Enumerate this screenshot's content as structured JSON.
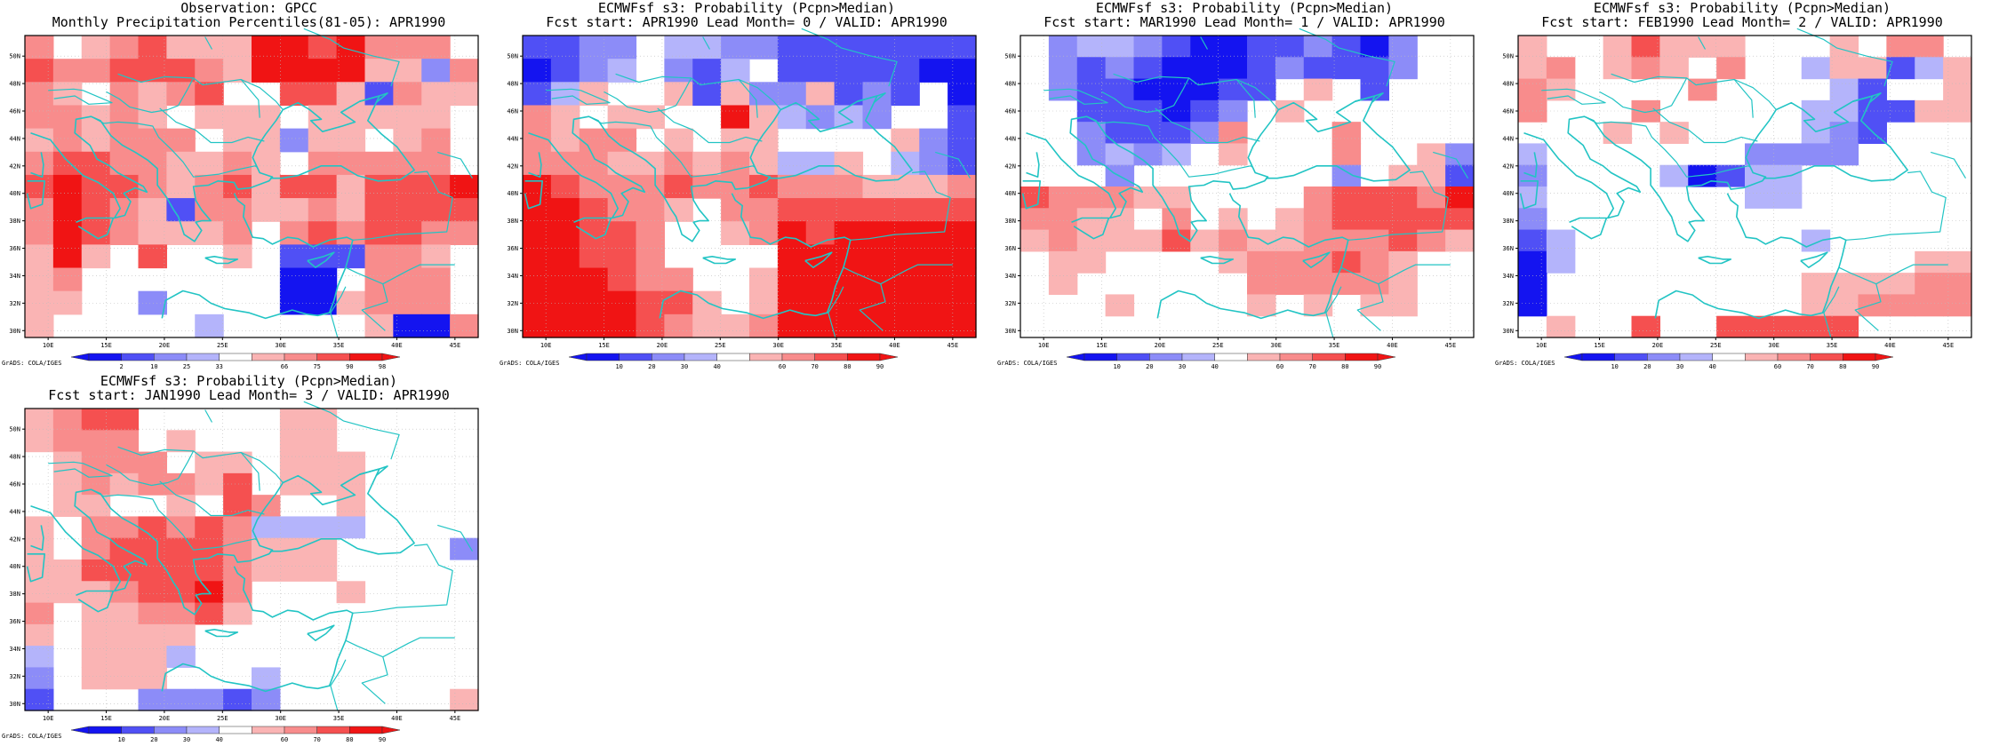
{
  "bins": {
    "b1": "#1414f0",
    "b2": "#5050f5",
    "b3": "#8c8cf8",
    "b4": "#b4b4fb",
    "w": "#ffffff",
    "r1": "#fab4b4",
    "r2": "#f88c8c",
    "r3": "#f55050",
    "r4": "#f01414"
  },
  "coast_color": "#22c4c4",
  "lat_labels": [
    "30N",
    "32N",
    "34N",
    "36N",
    "38N",
    "40N",
    "42N",
    "44N",
    "46N",
    "48N",
    "50N"
  ],
  "lon_labels": [
    "10E",
    "15E",
    "20E",
    "25E",
    "30E",
    "35E",
    "40E",
    "45E"
  ],
  "credit": "GrADS: COLA/IGES",
  "panels": [
    {
      "title1": "Observation: GPCC",
      "title2": "Monthly Precipitation Percentiles(81-05): APR1990",
      "colorbar_labels": [
        "2",
        "10",
        "25",
        "33",
        "66",
        "75",
        "90",
        "98"
      ],
      "grid": [
        "r2 w r1 r2 r3 r1 r1 r1 r4 r4 r3 r4 r2 r2 r2 w",
        "r3 r2 r2 r3 r3 r3 r2 r1 r4 r4 r4 r4 r1 r1 b3 r2",
        "r2 r1 w r2 r1 r2 r3 w w r3 r3 r1 b2 r2 r1 r1",
        "r2 r2 r1 r2 r1 w r1 r1 r1 w r1 r1 r1 r1 r1 w",
        "r1 r2 r1 r2 r2 r2 w r1 r1 b3 r1 r1 w r1 r2 w",
        "r2 r3 r3 r2 r2 r1 r1 r2 r1 w r2 r2 r2 r2 r2 w",
        "r3 r4 r3 r3 r2 r1 r2 r3 r1 r3 r3 r1 r3 r3 r3 r4",
        "r2 r4 r3 r2 r1 b2 r2 r2 r1 r1 r2 r1 r3 r3 r3 r3",
        "r2 r4 r3 r2 r1 r1 r1 r2 w r2 r3 r2 r3 r3 r2 r2",
        "r1 r4 r1 w r3 w w r1 w b2 b2 b2 r2 r2 r1 w",
        "r1 r2 w w w w w w w b1 b1 w r2 r2 r2 w",
        "r1 r1 w w b3 w w w w b1 b1 r1 r2 r2 r2 w",
        "r1 w w w w w b4 w w w w w r1 b1 b1 r2"
      ]
    },
    {
      "title1": "ECMWFsf s3: Probability (Pcpn>Median)",
      "title2": "Fcst start: APR1990  Lead Month= 0 / VALID: APR1990",
      "colorbar_labels": [
        "10",
        "20",
        "30",
        "40",
        "60",
        "70",
        "80",
        "90"
      ],
      "grid": [
        "b2 b2 b3 b3 w b4 b4 b3 b3 b2 b2 b2 b2 b2 b2 b2",
        "b1 b2 b3 b4 w b3 b2 b4 w b2 b2 b2 b2 b2 b1 b1",
        "b2 b4 r1 w w r1 b2 r1 b3 b3 r1 b2 b3 b2 w b1",
        "r2 r1 w r1 r1 w w r4 r1 b4 b3 b4 b3 w w b2",
        "r2 r1 r2 r2 w r1 w r1 r1 w w w w r1 b3 b2",
        "r2 r2 r2 r1 r1 r2 r1 r2 r1 b4 b4 r1 w b4 b3 b2",
        "r4 r3 r2 r2 r2 r3 r2 r2 r3 r2 r2 r2 r1 r1 r1 r2",
        "r4 r4 r3 r2 r2 r1 w r2 r2 r3 r3 r3 r3 r3 r3 r3",
        "r4 r4 r3 r3 r2 w w r1 r2 r4 r3 r4 r4 r4 r4 r4",
        "r4 r4 r3 r3 r2 w w w w r4 r4 r4 r4 r4 r4 r4",
        "r4 r4 r4 r3 r2 r2 w w r1 r4 r4 r4 r4 r4 r4 r4",
        "r4 r4 r4 r4 r3 r3 r1 w r1 r4 r4 r4 r4 r4 r4 r4",
        "r4 r4 r4 r4 r3 r2 r1 r1 r2 r4 r4 r4 r4 r4 r4 r4"
      ]
    },
    {
      "title1": "ECMWFsf s3: Probability (Pcpn>Median)",
      "title2": "Fcst start: MAR1990  Lead Month= 1 / VALID: APR1990",
      "colorbar_labels": [
        "10",
        "20",
        "30",
        "40",
        "60",
        "70",
        "80",
        "90"
      ],
      "grid": [
        "w b3 b4 b4 b3 b2 b1 b1 b2 b2 b3 b2 b1 b3 w w",
        "w b3 b2 b3 b2 b1 b1 b1 b2 b3 b2 b2 b2 b3 w w",
        "w b3 b2 b2 b1 b1 b1 b2 b2 w r1 w b2 w w w",
        "w w b2 b2 b2 b1 b2 b3 w r1 w w w w w w",
        "w w b3 b2 b2 b2 b3 r2 w w w r2 w w w w",
        "w w b3 b4 b3 b4 w r1 w w w r2 w w r1 b3",
        "w w w b3 w w w w w w w b3 w r1 r1 b2",
        "r3 r2 r2 r2 r1 r1 w w w w r2 r3 r3 r3 r2 r4",
        "r2 r2 r1 r1 w r2 w r1 w r1 r2 r3 r3 r3 r3 r3",
        "r1 r2 r1 r1 r1 r3 r1 r2 r1 r1 r2 r2 r2 r3 r2 r1",
        "w r1 r1 w w w w r1 r2 r2 r2 r3 r2 r1 w w",
        "w r1 w w w w w w r2 r2 r2 r2 r2 r1 w w",
        "w w w r1 w w w w r1 w r1 w r1 r1 w w",
        "w w w w w w w w w w w w w w w w"
      ]
    },
    {
      "title1": "ECMWFsf s3: Probability (Pcpn>Median)",
      "title2": "Fcst start: FEB1990  Lead Month= 2 / VALID: APR1990",
      "colorbar_labels": [
        "10",
        "20",
        "30",
        "40",
        "60",
        "70",
        "80",
        "90"
      ],
      "grid": [
        "r1 w w r1 r3 r1 r1 r1 w w w r1 w r2 r2 w",
        "r1 r2 w r1 r2 r1 w r2 w w b4 r1 r1 b2 b4 r1",
        "r2 r1 w w w w r2 w w w w b4 b2 w w r1",
        "r2 w w w r2 w w w w w b4 b4 b2 b2 r1 r1",
        "w w w r1 w r1 w w w w b4 b3 b2 w w w",
        "b4 w w w w w w w b3 b3 b3 b3 w w w w",
        "b3 w w w w b4 b1 b2 b4 b4 w w w w w w",
        "b4 w w w w w w w b4 b4 w w w w w w",
        "b3 w w w w w w w w w w w w w w w",
        "b2 b4 w w w w w w w w b4 w w w w w",
        "b1 b4 w w w w w w w w w w w w r1 r1",
        "b1 w w w w w w w w w r1 r1 r1 r1 r2 r2",
        "b1 w w w w w w w w w r1 r1 r2 r2 r2 r2",
        "w r1 w w r3 w w r3 r3 r3 r3 r3 w w w w"
      ]
    },
    {
      "title1": "ECMWFsf s3: Probability (Pcpn>Median)",
      "title2": "Fcst start: JAN1990  Lead Month= 3 / VALID: APR1990",
      "colorbar_labels": [
        "10",
        "20",
        "30",
        "40",
        "60",
        "70",
        "80",
        "90"
      ],
      "grid": [
        "r1 r2 r3 r3 w w w w w r1 r1 w w w w w",
        "r1 r2 r2 r2 w r1 w w w r1 r1 w w w w w",
        "w r1 r2 r2 r2 w r1 r1 w r1 r1 r1 w w w w",
        "w r1 r2 r1 r2 r2 r1 r3 w r1 r1 r1 w w w w",
        "w r1 r1 w w r1 w r3 r2 w w r1 w w w w",
        "r1 w r2 r2 r3 r2 r3 r2 b4 b4 b4 b4 w w w w",
        "r1 w r2 r3 r3 r3 r3 r2 r1 r1 r1 w w w w b3",
        "r1 r1 r3 r3 r3 r3 r3 r2 r1 r1 r1 w w w w w",
        "r1 r1 r1 r2 r3 r3 r4 r2 w w w r1 w w w w",
        "r2 w r1 r1 r2 r2 r3 r1 w w w w w w w w",
        "r1 w r1 r1 r1 r1 w w w w w w w w w w",
        "b4 w r1 r1 r1 b4 w w w w w w w w w w",
        "b3 w r1 r1 r1 w w w b4 w w w w w w w",
        "b2 w w w b3 b3 b3 b2 b3 w w w w w w r1"
      ]
    }
  ]
}
